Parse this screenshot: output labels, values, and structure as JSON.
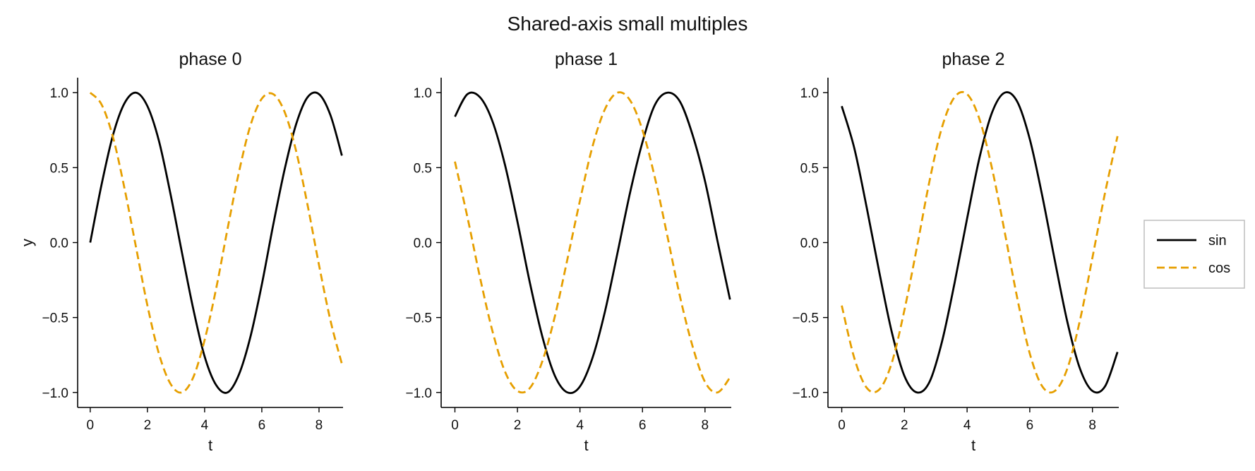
{
  "colors": {
    "sin": "#000000",
    "cos": "#E69F00",
    "axes": "#000000",
    "legend_frame": "#BDBDBD"
  },
  "chart_data": {
    "type": "line",
    "title": "Shared-axis small multiples",
    "shared_axes": true,
    "xlabel": "t",
    "ylabel": "y",
    "xlim": [
      -0.44,
      8.84
    ],
    "ylim": [
      -1.1,
      1.1
    ],
    "xticks": [
      0,
      2,
      4,
      6,
      8
    ],
    "yticks": [
      1.0,
      0.5,
      0.0,
      -0.5,
      -1.0
    ],
    "ytick_labels": [
      "1.0",
      "0.5",
      "0.0",
      "−0.5",
      "−1.0"
    ],
    "grid": false,
    "legend": {
      "placement": "right",
      "entries": [
        {
          "name": "sin",
          "style": "solid"
        },
        {
          "name": "cos",
          "style": "dashed"
        }
      ]
    },
    "x": [
      0.0,
      0.4,
      0.8,
      1.2,
      1.6,
      2.0,
      2.4,
      2.8,
      3.2,
      3.6,
      4.0,
      4.4,
      4.8,
      5.2,
      5.6,
      6.0,
      6.4,
      6.8,
      7.2,
      7.6,
      8.0,
      8.4,
      8.8
    ],
    "panels": [
      {
        "title": "phase 0",
        "phase": 0,
        "series": [
          {
            "name": "sin",
            "values": [
              0.0,
              0.39,
              0.72,
              0.93,
              1.0,
              0.91,
              0.68,
              0.33,
              -0.06,
              -0.44,
              -0.76,
              -0.95,
              -1.0,
              -0.88,
              -0.63,
              -0.28,
              0.12,
              0.49,
              0.79,
              0.97,
              0.99,
              0.85,
              0.58
            ]
          },
          {
            "name": "cos",
            "values": [
              1.0,
              0.92,
              0.7,
              0.36,
              -0.03,
              -0.42,
              -0.74,
              -0.94,
              -1.0,
              -0.9,
              -0.65,
              -0.31,
              0.09,
              0.47,
              0.78,
              0.96,
              0.99,
              0.87,
              0.61,
              0.25,
              -0.15,
              -0.52,
              -0.81
            ]
          }
        ]
      },
      {
        "title": "phase 1",
        "phase": 1,
        "series": [
          {
            "name": "sin",
            "values": [
              0.84,
              0.99,
              0.97,
              0.81,
              0.52,
              0.14,
              -0.27,
              -0.63,
              -0.89,
              -1.0,
              -0.96,
              -0.77,
              -0.46,
              -0.07,
              0.33,
              0.67,
              0.92,
              1.0,
              0.94,
              0.72,
              0.41,
              0.01,
              -0.38
            ]
          },
          {
            "name": "cos",
            "values": [
              0.54,
              0.17,
              -0.23,
              -0.59,
              -0.86,
              -0.99,
              -0.97,
              -0.79,
              -0.49,
              -0.11,
              0.28,
              0.64,
              0.89,
              1.0,
              0.95,
              0.75,
              0.43,
              0.04,
              -0.36,
              -0.69,
              -0.93,
              -1.0,
              -0.9
            ]
          }
        ]
      },
      {
        "title": "phase 2",
        "phase": 2,
        "series": [
          {
            "name": "sin",
            "values": [
              0.91,
              0.63,
              0.23,
              -0.2,
              -0.6,
              -0.89,
              -1.0,
              -0.93,
              -0.66,
              -0.27,
              0.16,
              0.57,
              0.87,
              1.0,
              0.94,
              0.69,
              0.31,
              -0.12,
              -0.53,
              -0.84,
              -0.99,
              -0.96,
              -0.73
            ]
          },
          {
            "name": "cos",
            "values": [
              -0.42,
              -0.77,
              -0.97,
              -0.98,
              -0.8,
              -0.45,
              -0.03,
              0.41,
              0.77,
              0.97,
              0.99,
              0.82,
              0.49,
              0.07,
              -0.37,
              -0.74,
              -0.96,
              -0.99,
              -0.84,
              -0.52,
              -0.1,
              0.33,
              0.71
            ]
          }
        ]
      }
    ]
  }
}
